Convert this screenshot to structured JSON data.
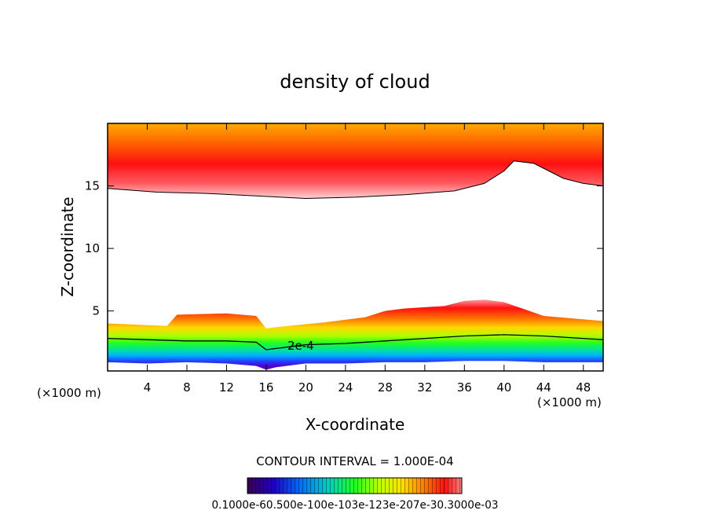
{
  "chart_data": {
    "type": "contour",
    "title": "density of cloud",
    "xlabel": "X-coordinate",
    "ylabel": "Z-coordinate",
    "x_unit_left": "(×1000 m)",
    "x_unit_right": "(×1000 m)",
    "xlim": [
      0,
      50
    ],
    "ylim": [
      0.2,
      20
    ],
    "x_ticks": [
      "4",
      "8",
      "12",
      "16",
      "20",
      "24",
      "28",
      "32",
      "36",
      "40",
      "44",
      "48"
    ],
    "y_ticks": [
      "5",
      "10",
      "15"
    ],
    "contour_label": "2e-4",
    "contour_interval_text": "CONTOUR INTERVAL = 1.000E-04",
    "colorbar_labels_text": "0.1000e-60.500e-100e-103e-123e-207e-30.3000e-03",
    "colorbar_range": [
      0.0001,
      0.0003
    ],
    "upper_layer_boundary": {
      "x": [
        0,
        5,
        10,
        15,
        20,
        25,
        30,
        35,
        38,
        40,
        41,
        43,
        46,
        48,
        50
      ],
      "z": [
        14.8,
        14.5,
        14.4,
        14.2,
        14.0,
        14.1,
        14.3,
        14.6,
        15.2,
        16.2,
        17.0,
        16.8,
        15.6,
        15.2,
        15.0
      ]
    },
    "lower_layer_top": {
      "x": [
        0,
        6,
        7,
        12,
        15,
        16,
        17,
        22,
        26,
        28,
        30,
        34,
        36,
        38,
        40,
        44,
        47,
        50
      ],
      "z": [
        4.0,
        3.8,
        4.7,
        4.8,
        4.6,
        3.6,
        3.7,
        4.1,
        4.5,
        5.0,
        5.2,
        5.4,
        5.8,
        5.9,
        5.7,
        4.6,
        4.4,
        4.2
      ]
    },
    "contour_2e-4": {
      "x": [
        0,
        4,
        8,
        12,
        15,
        16,
        17,
        20,
        24,
        28,
        32,
        36,
        40,
        44,
        48,
        50
      ],
      "z": [
        2.8,
        2.7,
        2.6,
        2.6,
        2.5,
        1.9,
        2.0,
        2.3,
        2.4,
        2.6,
        2.8,
        3.0,
        3.1,
        3.0,
        2.8,
        2.7
      ]
    },
    "lower_layer_bottom": {
      "x": [
        0,
        4,
        8,
        12,
        15,
        16,
        17,
        20,
        24,
        28,
        32,
        36,
        40,
        44,
        48,
        50
      ],
      "z": [
        0.9,
        0.8,
        0.9,
        0.8,
        0.6,
        0.3,
        0.5,
        0.8,
        0.8,
        0.9,
        0.9,
        1.0,
        1.0,
        0.9,
        0.9,
        0.9
      ]
    }
  }
}
